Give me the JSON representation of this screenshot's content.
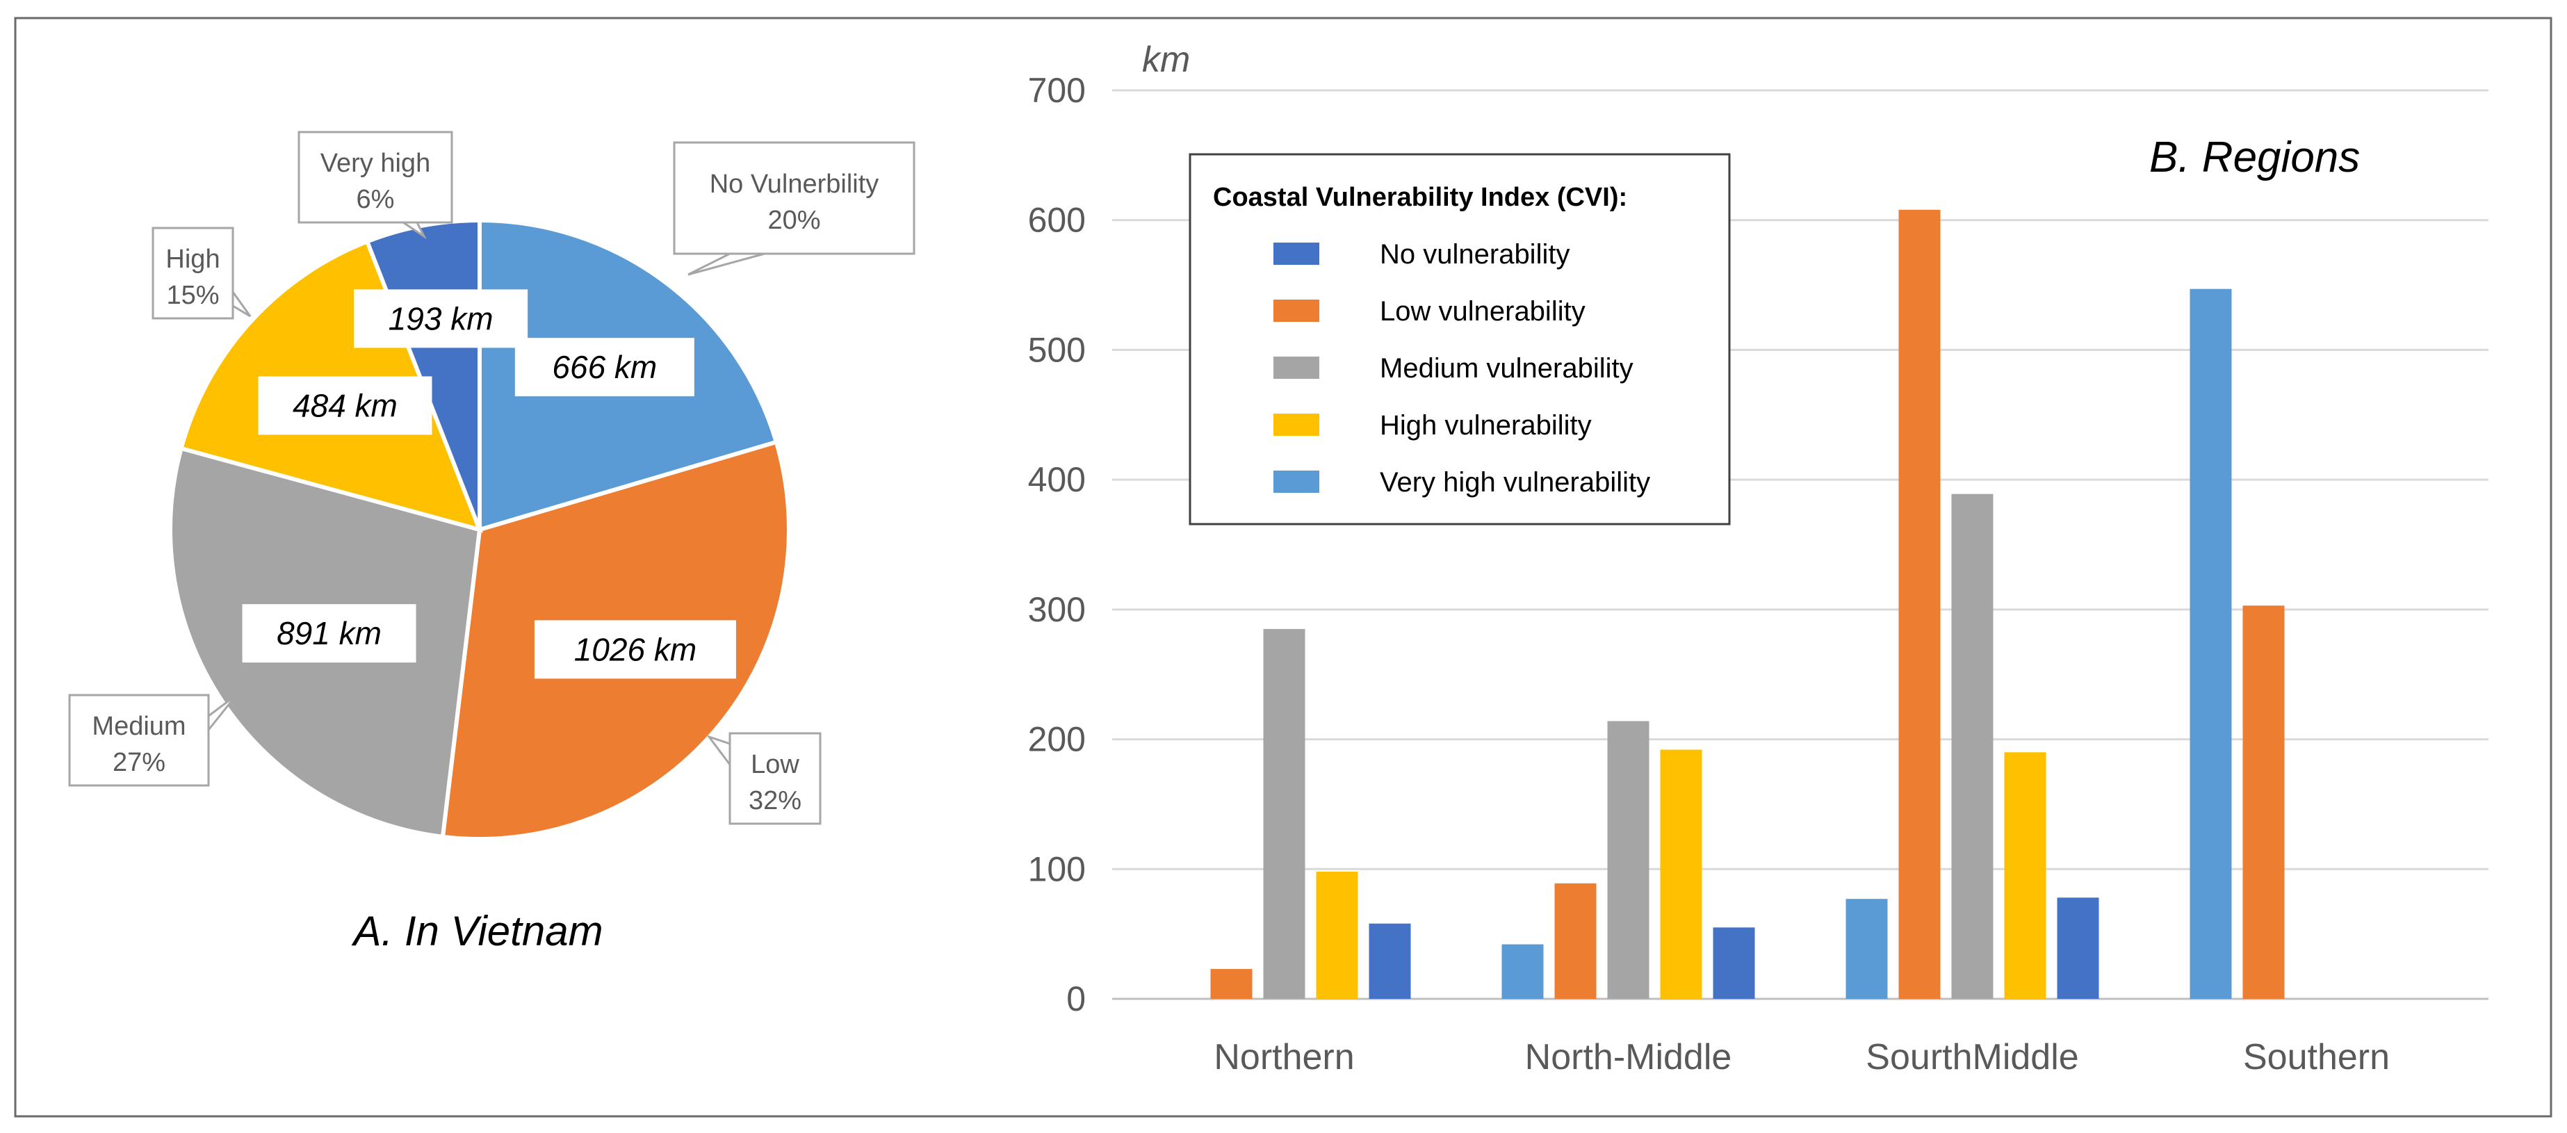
{
  "chart_data": [
    {
      "type": "pie",
      "title": "A. In Vietnam",
      "unit": "km",
      "slices": [
        {
          "name": "No Vulnerbility",
          "value": 666,
          "label": "666 km",
          "callout": "No Vulnerbility",
          "percent": "20%",
          "color": "#5b9bd5"
        },
        {
          "name": "Low",
          "value": 1026,
          "label": "1026 km",
          "callout": "Low",
          "percent": "32%",
          "color": "#ed7d31"
        },
        {
          "name": "Medium",
          "value": 891,
          "label": "891 km",
          "callout": "Medium",
          "percent": "27%",
          "color": "#a5a5a5"
        },
        {
          "name": "High",
          "value": 484,
          "label": "484 km",
          "callout": "High",
          "percent": "15%",
          "color": "#ffc000"
        },
        {
          "name": "Very high",
          "value": 193,
          "label": "193 km",
          "callout": "Very high",
          "percent": "6%",
          "color": "#4472c4"
        }
      ]
    },
    {
      "type": "bar",
      "title": "B. Regions",
      "ylabel": "km",
      "ylim": [
        0,
        700
      ],
      "yticks": [
        0,
        100,
        200,
        300,
        400,
        500,
        600,
        700
      ],
      "grid": true,
      "categories": [
        "Northern",
        "North-Middle",
        "SourthMiddle",
        "Southern"
      ],
      "legend": {
        "title": "Coastal Vulnerability Index (CVI):",
        "position": "top-left",
        "entries": [
          {
            "name": "No vulnerability",
            "color": "#4472c4"
          },
          {
            "name": "Low vulnerability",
            "color": "#ed7d31"
          },
          {
            "name": "Medium vulnerability",
            "color": "#a5a5a5"
          },
          {
            "name": "High vulnerability",
            "color": "#ffc000"
          },
          {
            "name": "Very high vulnerability",
            "color": "#5b9bd5"
          }
        ]
      },
      "bar_order": [
        "Light blue",
        "Orange",
        "Gray",
        "Yellow",
        "Dark blue"
      ],
      "series": [
        {
          "name": "Light blue",
          "color": "#5b9bd5",
          "values": [
            0,
            42,
            77,
            547
          ]
        },
        {
          "name": "Orange",
          "color": "#ed7d31",
          "values": [
            23,
            89,
            608,
            303
          ]
        },
        {
          "name": "Gray",
          "color": "#a5a5a5",
          "values": [
            285,
            214,
            389,
            0
          ]
        },
        {
          "name": "Yellow",
          "color": "#ffc000",
          "values": [
            98,
            192,
            190,
            0
          ]
        },
        {
          "name": "Dark blue",
          "color": "#4472c4",
          "values": [
            58,
            55,
            78,
            0
          ]
        }
      ]
    }
  ]
}
